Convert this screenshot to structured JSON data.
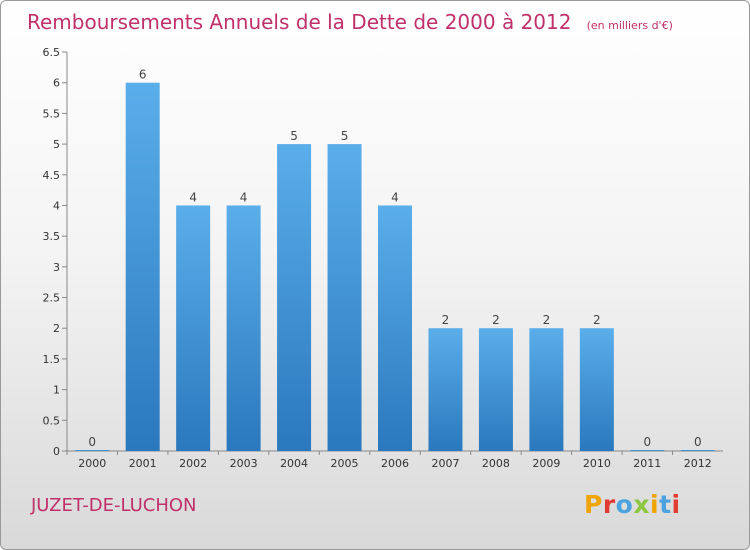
{
  "header": {
    "title": "Remboursements Annuels de la Dette de 2000 à 2012",
    "unit": "(en milliers d'€)"
  },
  "commune": "JUZET-DE-LUCHON",
  "logo": {
    "text": "Proxiti",
    "colors": [
      "#f0a400",
      "#e03c31",
      "#4aa3df",
      "#8dc63f",
      "#f0a400",
      "#4aa3df",
      "#e03c31"
    ]
  },
  "colors": {
    "bar": "#3a8fd6",
    "bar_light": "#5aadea",
    "title": "#c0306a"
  },
  "chart_data": {
    "type": "bar",
    "title": "Remboursements Annuels de la Dette de 2000 à 2012",
    "categories": [
      "2000",
      "2001",
      "2002",
      "2003",
      "2004",
      "2005",
      "2006",
      "2007",
      "2008",
      "2009",
      "2010",
      "2011",
      "2012"
    ],
    "values": [
      0,
      6,
      4,
      4,
      5,
      5,
      4,
      2,
      2,
      2,
      2,
      0,
      0
    ],
    "ylim": [
      0,
      6.5
    ],
    "yticks": [
      "0",
      "0.5",
      "1",
      "1.5",
      "2",
      "2.5",
      "3",
      "3.5",
      "4",
      "4.5",
      "5",
      "5.5",
      "6",
      "6.5"
    ],
    "grid": false
  }
}
